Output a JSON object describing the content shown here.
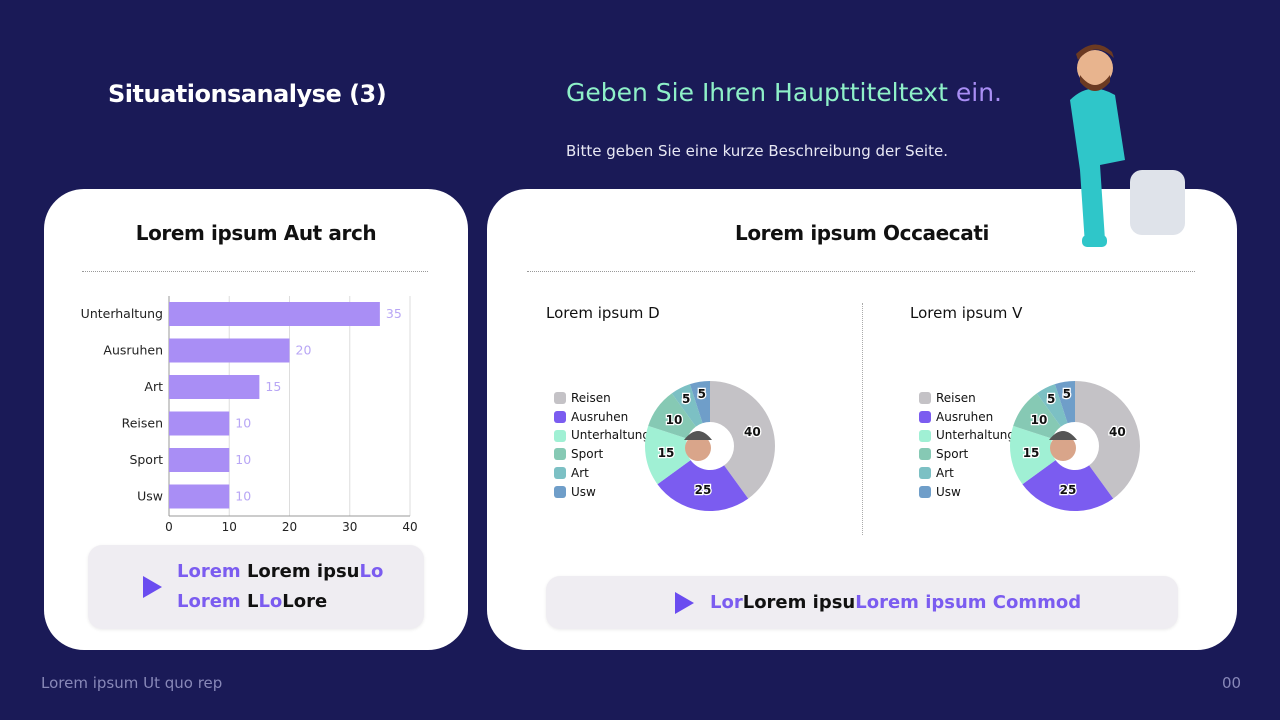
{
  "title": "Situationsanalyse (3)",
  "headline": {
    "part1": "Geben Sie Ihren Haupttiteltext",
    "part2": " ein."
  },
  "description": "Bitte geben Sie eine kurze Beschreibung der Seite.",
  "footer": "Lorem ipsum Ut quo rep",
  "page_number": "00",
  "left_card": {
    "title": "Lorem ipsum Aut arch",
    "callout_lines": [
      [
        {
          "t": "Lorem ",
          "c": "p"
        },
        {
          "t": "Lorem ipsu",
          "c": "k"
        },
        {
          "t": "Lo",
          "c": "p"
        }
      ],
      [
        {
          "t": "Lorem ",
          "c": "p"
        },
        {
          "t": "L",
          "c": "k"
        },
        {
          "t": "Lo",
          "c": "p"
        },
        {
          "t": "Lore",
          "c": "k"
        }
      ]
    ]
  },
  "right_card": {
    "title": "Lorem ipsum Occaecati",
    "callout_line": [
      {
        "t": "Lor",
        "c": "p"
      },
      {
        "t": "Lorem ipsu",
        "c": "k"
      },
      {
        "t": "Lorem ipsum Commod",
        "c": "p"
      }
    ]
  },
  "colors": {
    "bar": "#a98ef5",
    "accent": "#7b5cf0",
    "background": "#1a1a57"
  },
  "chart_data": [
    {
      "type": "bar",
      "orientation": "horizontal",
      "categories": [
        "Unterhaltung",
        "Ausruhen",
        "Art",
        "Reisen",
        "Sport",
        "Usw"
      ],
      "values": [
        35,
        20,
        15,
        10,
        10,
        10
      ],
      "xlim": [
        0,
        40
      ],
      "xticks": [
        0,
        10,
        20,
        30,
        40
      ],
      "grid": true,
      "data_labels": true
    },
    {
      "type": "pie",
      "donut": true,
      "title": "Lorem ipsum D",
      "labels": [
        "Reisen",
        "Ausruhen",
        "Unterhaltung",
        "Sport",
        "Art",
        "Usw"
      ],
      "values": [
        40,
        25,
        15,
        10,
        5,
        5
      ],
      "colors": [
        "#c4c2c6",
        "#7b5cf0",
        "#a0f0d4",
        "#86c9b4",
        "#7cc0c4",
        "#6f9ec9"
      ],
      "legend": "left"
    },
    {
      "type": "pie",
      "donut": true,
      "title": "Lorem ipsum V",
      "labels": [
        "Reisen",
        "Ausruhen",
        "Unterhaltung",
        "Sport",
        "Art",
        "Usw"
      ],
      "values": [
        40,
        25,
        15,
        10,
        5,
        5
      ],
      "colors": [
        "#c4c2c6",
        "#7b5cf0",
        "#a0f0d4",
        "#86c9b4",
        "#7cc0c4",
        "#6f9ec9"
      ],
      "legend": "left"
    }
  ]
}
